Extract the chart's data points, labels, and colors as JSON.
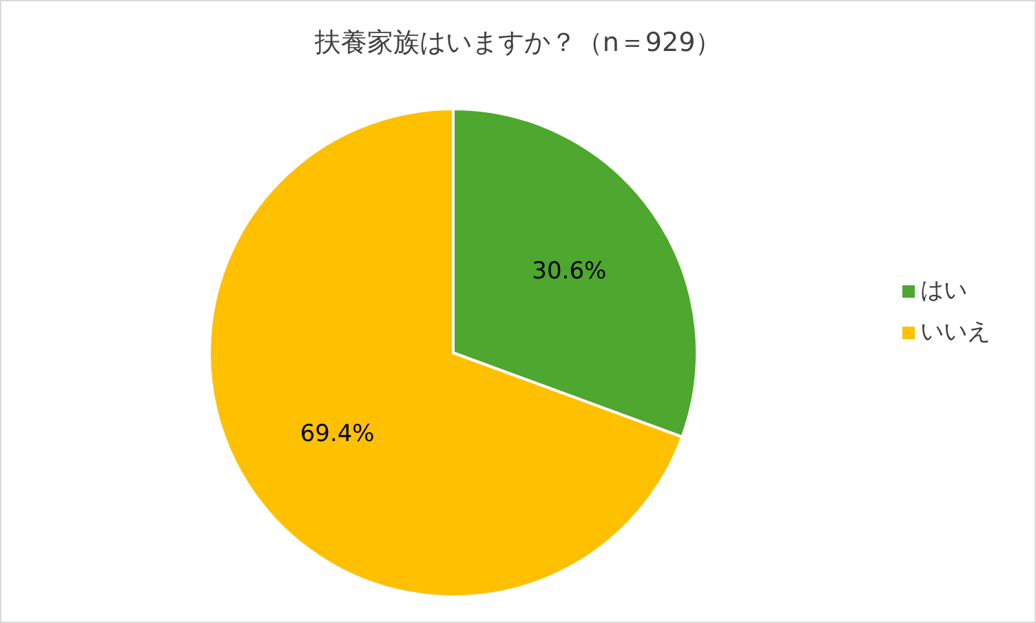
{
  "chart_data": {
    "type": "pie",
    "title": "扶養家族はいますか？（n＝929）",
    "categories": [
      "はい",
      "いいえ"
    ],
    "values": [
      30.6,
      69.4
    ],
    "colors": [
      "#4ea72e",
      "#ffc000"
    ],
    "value_labels": [
      "30.6%",
      "69.4%"
    ],
    "legend": "right"
  }
}
